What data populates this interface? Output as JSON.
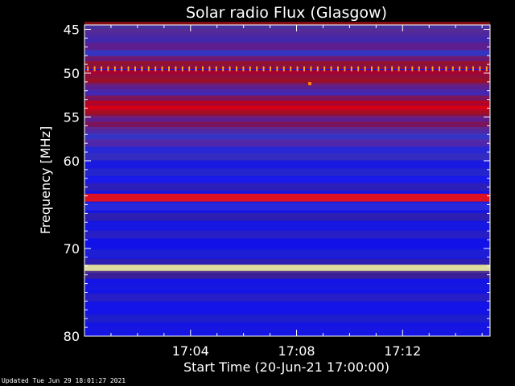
{
  "chart_data": {
    "type": "heatmap",
    "title": "Solar radio Flux (Glasgow)",
    "ylabel": "Frequency [MHz]",
    "xlabel": "Start Time (20-Jun-21 17:00:00)",
    "ylim": [
      44.5,
      80
    ],
    "xlim_minutes": [
      0,
      15.3
    ],
    "y_ticks": [
      45,
      50,
      55,
      60,
      70,
      80
    ],
    "y_minor_ticks": [
      46,
      47,
      48,
      49,
      51,
      52,
      53,
      54,
      56,
      57,
      58,
      59,
      61,
      62,
      63,
      64,
      65,
      66,
      67,
      68,
      69,
      71,
      72,
      73,
      74,
      75,
      76,
      77,
      78,
      79
    ],
    "x_ticks": [
      {
        "minute": 4,
        "label": "17:04"
      },
      {
        "minute": 8,
        "label": "17:08"
      },
      {
        "minute": 12,
        "label": "17:12"
      }
    ],
    "x_minor_ticks_minutes": [
      1,
      2,
      3,
      5,
      6,
      7,
      9,
      10,
      11,
      13,
      14,
      15
    ],
    "colorscale": [
      "#0000cc",
      "#1a1aff",
      "#3a2aa8",
      "#6a2070",
      "#a01010",
      "#e00000",
      "#ff8000",
      "#ffff80"
    ],
    "background_color": "#1414e6",
    "frequency_bands": [
      {
        "mhz": 44.6,
        "color": "#a01018"
      },
      {
        "mhz": 44.9,
        "color": "#3a3ab0"
      },
      {
        "mhz": 45.4,
        "color": "#5a2a90"
      },
      {
        "mhz": 46.2,
        "color": "#4a2aa0"
      },
      {
        "mhz": 47.0,
        "color": "#6a2080"
      },
      {
        "mhz": 47.8,
        "color": "#3a3ab8"
      },
      {
        "mhz": 48.5,
        "color": "#7a1a60"
      },
      {
        "mhz": 49.1,
        "color": "#a01020"
      },
      {
        "mhz": 50.1,
        "color": "#c00010"
      },
      {
        "mhz": 50.6,
        "color": "#8a1040"
      },
      {
        "mhz": 51.0,
        "color": "#a01020"
      },
      {
        "mhz": 51.6,
        "color": "#6a2080"
      },
      {
        "mhz": 52.3,
        "color": "#4a2aa8"
      },
      {
        "mhz": 53.0,
        "color": "#8a1448"
      },
      {
        "mhz": 53.6,
        "color": "#c80010"
      },
      {
        "mhz": 54.2,
        "color": "#e00008"
      },
      {
        "mhz": 54.7,
        "color": "#a01020"
      },
      {
        "mhz": 55.3,
        "color": "#6a2080"
      },
      {
        "mhz": 56.0,
        "color": "#8a1448"
      },
      {
        "mhz": 56.6,
        "color": "#5a2a98"
      },
      {
        "mhz": 57.3,
        "color": "#3a3ac0"
      },
      {
        "mhz": 58.0,
        "color": "#5a2aa0"
      },
      {
        "mhz": 58.8,
        "color": "#2a2ad0"
      },
      {
        "mhz": 59.6,
        "color": "#3a30b8"
      },
      {
        "mhz": 60.4,
        "color": "#1a1ae0"
      },
      {
        "mhz": 61.3,
        "color": "#2828c8"
      },
      {
        "mhz": 62.2,
        "color": "#1a1ae8"
      },
      {
        "mhz": 63.0,
        "color": "#3020b0"
      },
      {
        "mhz": 64.2,
        "color": "#ff1000"
      },
      {
        "mhz": 65.2,
        "color": "#2a2ad8"
      },
      {
        "mhz": 66.4,
        "color": "#3020a8"
      },
      {
        "mhz": 67.4,
        "color": "#1818e0"
      },
      {
        "mhz": 68.4,
        "color": "#2a20c0"
      },
      {
        "mhz": 69.4,
        "color": "#1212e8"
      },
      {
        "mhz": 70.6,
        "color": "#2020d0"
      },
      {
        "mhz": 71.6,
        "color": "#3020a8"
      },
      {
        "mhz": 72.3,
        "color": "#ffff90"
      },
      {
        "mhz": 73.0,
        "color": "#402088"
      },
      {
        "mhz": 74.4,
        "color": "#1818e0"
      },
      {
        "mhz": 75.6,
        "color": "#2a20c0"
      },
      {
        "mhz": 76.8,
        "color": "#1414e8"
      },
      {
        "mhz": 78.0,
        "color": "#2020c8"
      },
      {
        "mhz": 79.2,
        "color": "#1616e0"
      }
    ],
    "periodic_interference": {
      "mhz": 49.5,
      "color": "#ff9a30",
      "count": 60
    },
    "point_sources": [
      {
        "minute": 8.5,
        "mhz": 51.2,
        "color": "#ff8000"
      }
    ]
  },
  "footer": {
    "updated": "Updated Tue Jun 29 18:01:27 2021"
  },
  "colors": {
    "background": "#000000",
    "text": "#ffffff"
  }
}
